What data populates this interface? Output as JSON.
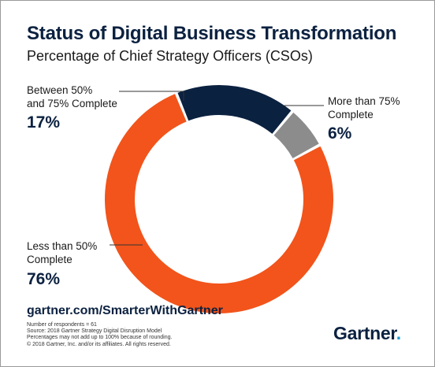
{
  "chart_data": {
    "type": "pie",
    "title": "Status of Digital Business Transformation",
    "subtitle": "Percentage of Chief Strategy Officers (CSOs)",
    "slices": [
      {
        "label": "Between 50% and 75% Complete",
        "label_lines": [
          "Between 50%",
          "and 75% Complete"
        ],
        "value": 17,
        "display": "17%",
        "color": "#0b2140"
      },
      {
        "label": "More than 75% Complete",
        "label_lines": [
          "More than 75%",
          "Complete"
        ],
        "value": 6,
        "display": "6%",
        "color": "#8c8c8c"
      },
      {
        "label": "Less than 50% Complete",
        "label_lines": [
          "Less than 50%",
          "Complete"
        ],
        "value": 76,
        "display": "76%",
        "color": "#f2541b"
      }
    ]
  },
  "footer": {
    "url": "gartner.com/SmarterWithGartner",
    "notes": [
      "Number of respondents = 61",
      "Source: 2018 Gartner Strategy Digital Disruption Model",
      "Percentages may not add up to 100% because of rounding.",
      "© 2018 Gartner, Inc. and/or its affiliates. All rights reserved."
    ],
    "logo_text": "Gartner",
    "logo_dot": "."
  }
}
